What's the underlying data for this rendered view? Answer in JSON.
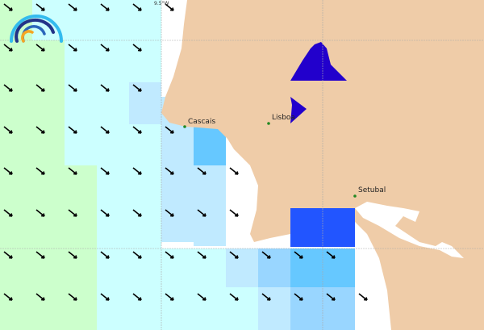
{
  "map": {
    "graticule_label": "9.5°W",
    "places": [
      {
        "name": "Cascais"
      },
      {
        "name": "Lisboa"
      },
      {
        "name": "Setubal"
      }
    ],
    "colors": {
      "land": "#efcca8",
      "sea": "#ffffff",
      "green": "#ccffcc",
      "pale_cyan": "#ccffff",
      "light_blue": "#c0eaff",
      "mid_blue": "#99d6ff",
      "blue": "#66c8ff",
      "strong_blue": "#2255ff",
      "navy": "#2200cc"
    },
    "arrow_direction": "south-east"
  },
  "logo": {
    "icon": "rainbow-logo-icon"
  }
}
